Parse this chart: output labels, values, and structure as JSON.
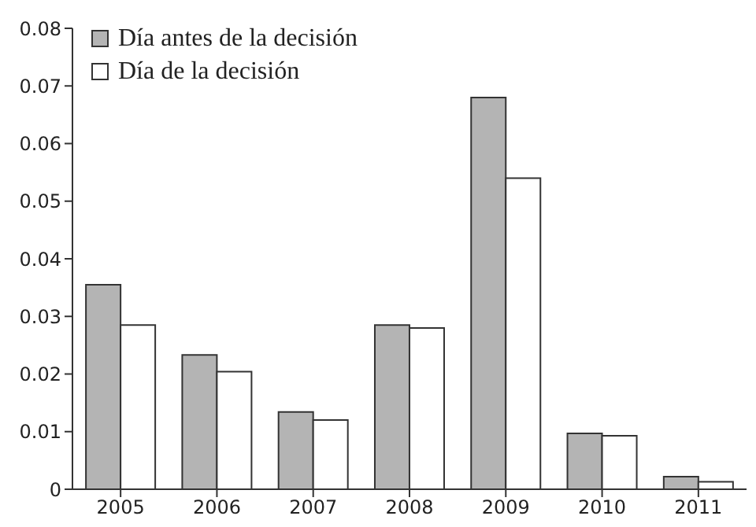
{
  "chart_data": {
    "type": "bar",
    "categories": [
      "2005",
      "2006",
      "2007",
      "2008",
      "2009",
      "2010",
      "2011"
    ],
    "series": [
      {
        "name": "Día antes de la decisión",
        "color": "#b4b4b4",
        "values": [
          0.0355,
          0.0233,
          0.0134,
          0.0285,
          0.068,
          0.0097,
          0.0022
        ]
      },
      {
        "name": "Día de la decisión",
        "color": "#ffffff",
        "values": [
          0.0285,
          0.0204,
          0.012,
          0.028,
          0.054,
          0.0093,
          0.0013
        ]
      }
    ],
    "ylim": [
      0,
      0.08
    ],
    "yticks": [
      0,
      0.01,
      0.02,
      0.03,
      0.04,
      0.05,
      0.06,
      0.07,
      0.08
    ],
    "grid": false,
    "legend": "top left"
  }
}
